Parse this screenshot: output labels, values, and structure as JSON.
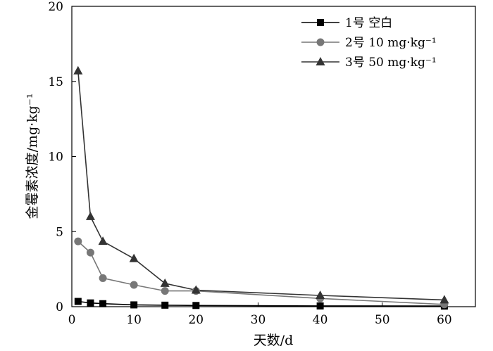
{
  "chart_data": {
    "type": "line",
    "xlabel": "天数/d",
    "ylabel": "金霉素浓度/mg·kg⁻¹",
    "xlim": [
      0,
      65
    ],
    "ylim": [
      0,
      20
    ],
    "xticks": [
      0,
      10,
      20,
      30,
      40,
      50,
      60
    ],
    "yticks": [
      0,
      5,
      10,
      15,
      20
    ],
    "grid": false,
    "legend_position": "top-right",
    "series": [
      {
        "name": "1号  空白",
        "marker": "square",
        "color": "#000000",
        "x": [
          1,
          3,
          5,
          10,
          15,
          20,
          40,
          60
        ],
        "y": [
          0.35,
          0.25,
          0.2,
          0.12,
          0.1,
          0.08,
          0.05,
          0.04
        ]
      },
      {
        "name": "2号  10 mg·kg⁻¹",
        "marker": "circle",
        "color": "#777777",
        "x": [
          1,
          3,
          5,
          10,
          15,
          20,
          40,
          60
        ],
        "y": [
          4.35,
          3.6,
          1.9,
          1.45,
          1.05,
          1.05,
          0.55,
          0.15
        ]
      },
      {
        "name": "3号  50 mg·kg⁻¹",
        "marker": "triangle",
        "color": "#333333",
        "x": [
          1,
          3,
          5,
          10,
          15,
          20,
          40,
          60
        ],
        "y": [
          15.7,
          6.0,
          4.35,
          3.2,
          1.55,
          1.1,
          0.75,
          0.45
        ]
      }
    ]
  }
}
